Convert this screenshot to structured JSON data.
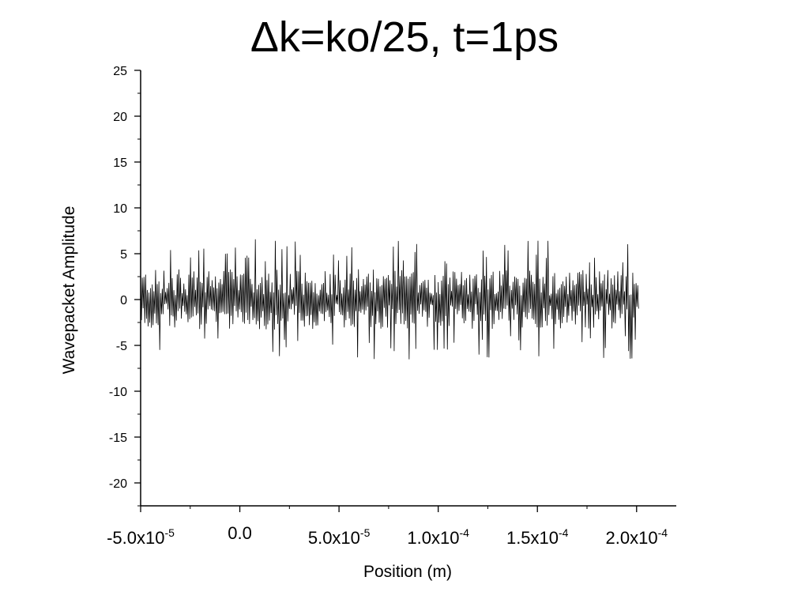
{
  "chart_data": {
    "type": "line",
    "title": "Δk=ko/25, t=1ps",
    "xlabel": "Position (m)",
    "ylabel": "Wavepacket Amplitude",
    "xlim": [
      -5e-05,
      0.00022
    ],
    "ylim": [
      -22.5,
      25
    ],
    "grid": false,
    "legend": "none",
    "line_color": "#000000",
    "y_ticks": [
      {
        "value": 25,
        "label": "25"
      },
      {
        "value": 20,
        "label": "20"
      },
      {
        "value": 15,
        "label": "15"
      },
      {
        "value": 10,
        "label": "10"
      },
      {
        "value": 5,
        "label": "5"
      },
      {
        "value": 0,
        "label": "0"
      },
      {
        "value": -5,
        "label": "-5"
      },
      {
        "value": -10,
        "label": "-10"
      },
      {
        "value": -15,
        "label": "-15"
      },
      {
        "value": -20,
        "label": "-20"
      }
    ],
    "x_ticks": [
      {
        "value": -5e-05,
        "mantissa": "-5.0x10",
        "exp": "-5"
      },
      {
        "value": 0,
        "mantissa": "0.0",
        "exp": ""
      },
      {
        "value": 5e-05,
        "mantissa": "5.0x10",
        "exp": "-5"
      },
      {
        "value": 0.0001,
        "mantissa": "1.0x10",
        "exp": "-4"
      },
      {
        "value": 0.00015,
        "mantissa": "1.5x10",
        "exp": "-4"
      },
      {
        "value": 0.0002,
        "mantissa": "2.0x10",
        "exp": "-4"
      }
    ],
    "series": [
      {
        "x_start": -5e-05,
        "x_end": 0.000201,
        "points": 600,
        "envelope_max": 6.7,
        "envelope_min": -7.5,
        "typical_amplitude": 3
      }
    ]
  }
}
